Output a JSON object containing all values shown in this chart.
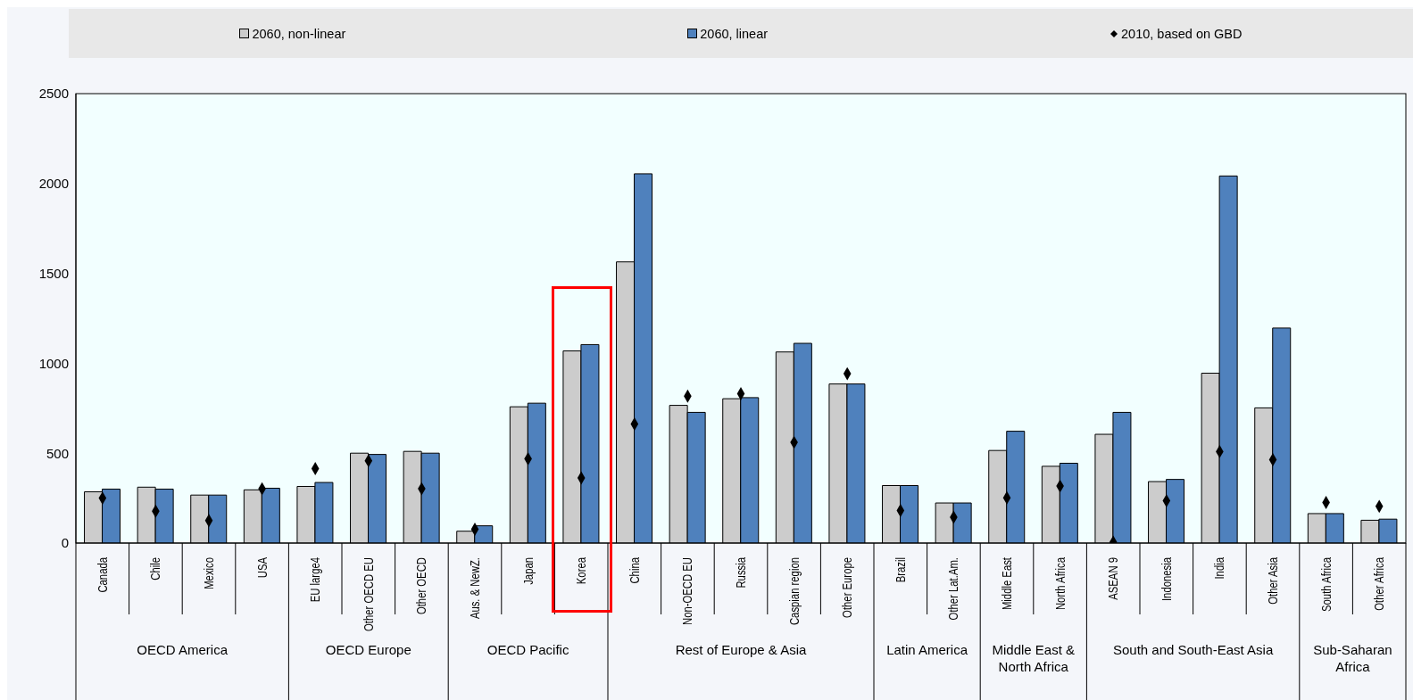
{
  "chart_data": {
    "type": "bar",
    "categories": [
      "Canada",
      "Chile",
      "Mexico",
      "USA",
      "EU large4",
      "Other OECD EU",
      "Other OECD",
      "Aus. & NewZ.",
      "Japan",
      "Korea",
      "China",
      "Non-OECD EU",
      "Russia",
      "Caspian region",
      "Other Europe",
      "Brazil",
      "Other Lat.Am.",
      "Middle East",
      "North Africa",
      "ASEAN 9",
      "Indonesia",
      "India",
      "Other Asia",
      "South Africa",
      "Other Africa"
    ],
    "series": [
      {
        "name": "2060, non-linear",
        "color": "#cccccc",
        "values": [
          285,
          311,
          267,
          296,
          315,
          500,
          510,
          66,
          758,
          1069,
          1564,
          766,
          803,
          1063,
          885,
          320,
          223,
          515,
          427,
          605,
          342,
          945,
          752,
          164,
          127
        ]
      },
      {
        "name": "2060, linear",
        "color": "#4f81bd",
        "values": [
          300,
          300,
          267,
          305,
          337,
          493,
          500,
          96,
          778,
          1104,
          2054,
          727,
          809,
          1111,
          885,
          320,
          223,
          622,
          444,
          727,
          354,
          2042,
          1196,
          164,
          133
        ]
      },
      {
        "name": "2010, based on GBD",
        "type": "scatter",
        "marker": "diamond",
        "color": "#000000",
        "x": [
          "Canada",
          "Chile",
          "Mexico",
          "USA",
          "EU large4",
          "Other OECD EU",
          "Other OECD",
          "Aus. & NewZ.",
          "Japan",
          "Korea",
          "China",
          "Non-OECD EU",
          "Russia",
          "Caspian region",
          "Other Europe",
          "Brazil",
          "Other Lat.Am.",
          "Middle East",
          "North Africa",
          "ASEAN 9",
          "Indonesia",
          "India",
          "Other Asia",
          "South Africa",
          "Other Africa"
        ],
        "values": [
          250,
          177,
          125,
          302,
          414,
          458,
          302,
          77,
          469,
          362,
          662,
          817,
          831,
          560,
          942,
          181,
          144,
          252,
          317,
          5,
          235,
          509,
          464,
          226,
          204
        ]
      }
    ],
    "annotations": [
      "OECD America",
      "OECD Europe",
      "OECD Pacific",
      "Rest of Europe & Asia",
      "Latin America",
      "Middle East & North Africa",
      "South and South-East Asia",
      "Sub-Saharan Africa"
    ],
    "ylim": [
      0,
      2500
    ],
    "yticks": [
      0,
      500,
      1000,
      1500,
      2000,
      2500
    ],
    "legend": "top",
    "grid": false
  }
}
